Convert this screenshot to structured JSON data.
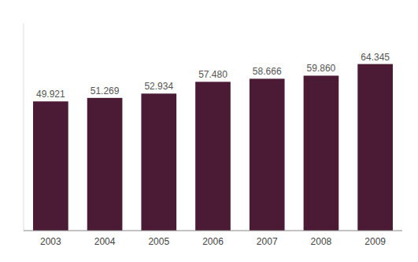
{
  "chart_data": {
    "type": "bar",
    "categories": [
      "2003",
      "2004",
      "2005",
      "2006",
      "2007",
      "2008",
      "2009"
    ],
    "values": [
      49.921,
      51.269,
      52.934,
      57.48,
      58.666,
      59.86,
      64.345
    ],
    "value_labels": [
      "49.921",
      "51.269",
      "52.934",
      "57.480",
      "58.666",
      "59.860",
      "64.345"
    ],
    "color": "#4B1A35",
    "ylim": [
      0,
      80
    ],
    "data_labels": true,
    "tick_labels": "x"
  }
}
